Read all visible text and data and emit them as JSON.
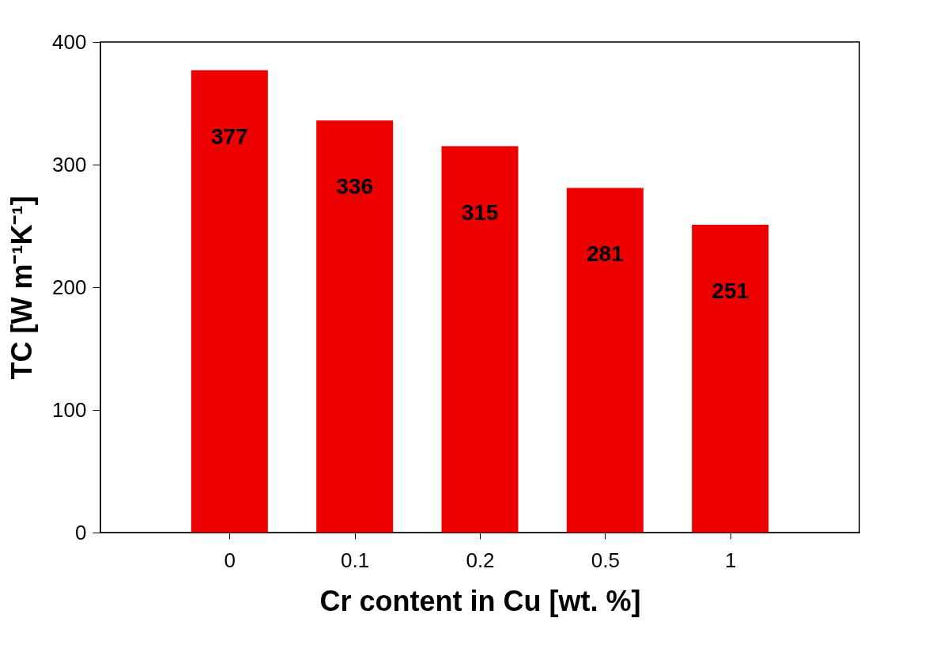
{
  "chart_data": {
    "type": "bar",
    "xlabel": "Cr content in Cu [wt. %]",
    "ylabel": "TC [W m⁻¹K⁻¹]",
    "categories": [
      "0",
      "0.1",
      "0.2",
      "0.5",
      "1"
    ],
    "values": [
      377,
      336,
      315,
      281,
      251
    ],
    "color": "#ee0000",
    "ylim": [
      0,
      400
    ],
    "yticks": [
      0,
      100,
      200,
      300,
      400
    ],
    "data_labels": true,
    "grid": false
  }
}
